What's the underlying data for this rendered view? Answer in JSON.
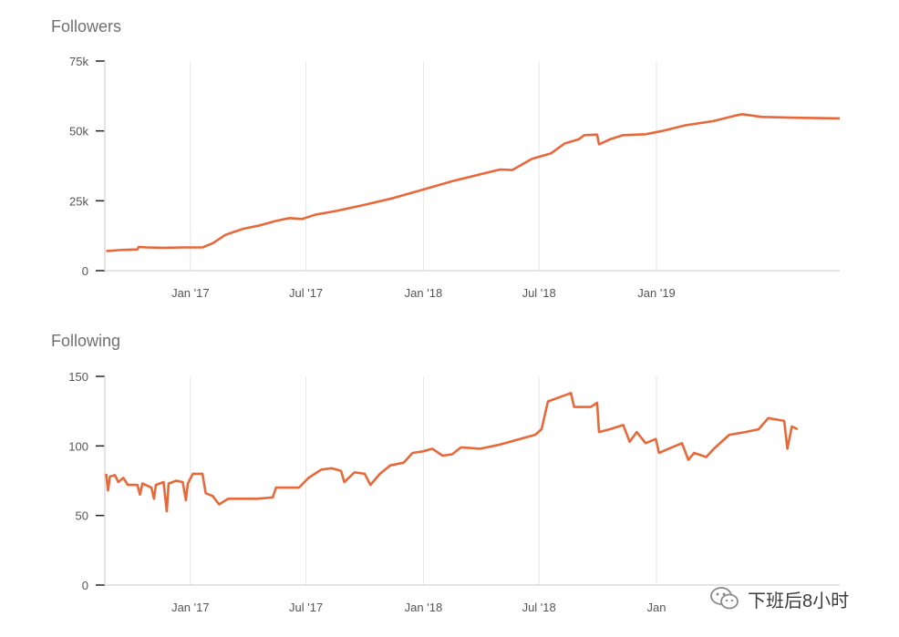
{
  "chart_data": [
    {
      "type": "line",
      "title": "Followers",
      "x_tick_labels": [
        "Jan '17",
        "Jul '17",
        "Jan '18",
        "Jul '18",
        "Jan '19"
      ],
      "y_tick_labels": [
        "0",
        "25k",
        "50k",
        "75k"
      ],
      "ylim": [
        0,
        75000
      ],
      "xlim": [
        "2016-08-20",
        "2019-10-15"
      ],
      "grid": "vertical",
      "series": [
        {
          "color": "#e8683a",
          "points": [
            [
              "2016-08-22",
              7000
            ],
            [
              "2016-09-15",
              7400
            ],
            [
              "2016-10-10",
              7600
            ],
            [
              "2016-10-12",
              8500
            ],
            [
              "2016-10-25",
              8300
            ],
            [
              "2016-11-20",
              8200
            ],
            [
              "2016-12-20",
              8300
            ],
            [
              "2017-01-20",
              8300
            ],
            [
              "2017-02-05",
              9800
            ],
            [
              "2017-02-25",
              12800
            ],
            [
              "2017-03-25",
              15000
            ],
            [
              "2017-04-20",
              16200
            ],
            [
              "2017-05-15",
              17800
            ],
            [
              "2017-06-05",
              18800
            ],
            [
              "2017-06-25",
              18500
            ],
            [
              "2017-07-15",
              20000
            ],
            [
              "2017-08-20",
              21500
            ],
            [
              "2017-09-30",
              23500
            ],
            [
              "2017-11-15",
              26000
            ],
            [
              "2017-12-31",
              29000
            ],
            [
              "2018-02-15",
              32000
            ],
            [
              "2018-03-31",
              34500
            ],
            [
              "2018-05-01",
              36200
            ],
            [
              "2018-05-20",
              36000
            ],
            [
              "2018-06-20",
              40000
            ],
            [
              "2018-07-20",
              42000
            ],
            [
              "2018-08-10",
              45500
            ],
            [
              "2018-09-01",
              47000
            ],
            [
              "2018-09-10",
              48500
            ],
            [
              "2018-09-30",
              48700
            ],
            [
              "2018-10-03",
              45200
            ],
            [
              "2018-10-20",
              47000
            ],
            [
              "2018-11-10",
              48500
            ],
            [
              "2018-12-15",
              48800
            ],
            [
              "2019-01-10",
              50000
            ],
            [
              "2019-02-15",
              52000
            ],
            [
              "2019-03-31",
              53500
            ],
            [
              "2019-05-05",
              55500
            ],
            [
              "2019-05-15",
              56000
            ],
            [
              "2019-06-15",
              55000
            ],
            [
              "2019-08-15",
              54700
            ],
            [
              "2019-10-15",
              54500
            ]
          ]
        }
      ]
    },
    {
      "type": "line",
      "title": "Following",
      "x_tick_labels": [
        "Jan '17",
        "Jul '17",
        "Jan '18",
        "Jul '18",
        "Jan"
      ],
      "y_tick_labels": [
        "0",
        "50",
        "100",
        "150"
      ],
      "ylim": [
        0,
        150
      ],
      "xlim": [
        "2016-08-20",
        "2019-10-15"
      ],
      "grid": "vertical",
      "series": [
        {
          "color": "#e8683a",
          "points": [
            [
              "2016-08-22",
              80
            ],
            [
              "2016-08-25",
              68
            ],
            [
              "2016-08-28",
              78
            ],
            [
              "2016-09-05",
              79
            ],
            [
              "2016-09-10",
              74
            ],
            [
              "2016-09-18",
              77
            ],
            [
              "2016-09-25",
              72
            ],
            [
              "2016-10-10",
              72
            ],
            [
              "2016-10-14",
              65
            ],
            [
              "2016-10-18",
              73
            ],
            [
              "2016-11-01",
              70
            ],
            [
              "2016-11-05",
              62
            ],
            [
              "2016-11-08",
              72
            ],
            [
              "2016-11-20",
              74
            ],
            [
              "2016-11-25",
              53
            ],
            [
              "2016-11-28",
              73
            ],
            [
              "2016-12-10",
              75
            ],
            [
              "2016-12-20",
              74
            ],
            [
              "2016-12-25",
              61
            ],
            [
              "2016-12-28",
              73
            ],
            [
              "2017-01-05",
              80
            ],
            [
              "2017-01-20",
              80
            ],
            [
              "2017-01-25",
              66
            ],
            [
              "2017-02-05",
              64
            ],
            [
              "2017-02-15",
              58
            ],
            [
              "2017-03-01",
              62
            ],
            [
              "2017-04-15",
              62
            ],
            [
              "2017-05-10",
              63
            ],
            [
              "2017-05-15",
              70
            ],
            [
              "2017-06-10",
              70
            ],
            [
              "2017-06-20",
              70
            ],
            [
              "2017-07-05",
              77
            ],
            [
              "2017-07-25",
              83
            ],
            [
              "2017-08-10",
              84
            ],
            [
              "2017-08-25",
              82
            ],
            [
              "2017-08-30",
              74
            ],
            [
              "2017-09-15",
              81
            ],
            [
              "2017-10-01",
              80
            ],
            [
              "2017-10-10",
              72
            ],
            [
              "2017-10-25",
              80
            ],
            [
              "2017-11-10",
              86
            ],
            [
              "2017-12-01",
              88
            ],
            [
              "2017-12-15",
              95
            ],
            [
              "2017-12-31",
              96
            ],
            [
              "2018-01-15",
              98
            ],
            [
              "2018-01-31",
              93
            ],
            [
              "2018-02-15",
              94
            ],
            [
              "2018-03-01",
              99
            ],
            [
              "2018-03-31",
              98
            ],
            [
              "2018-05-01",
              101
            ],
            [
              "2018-06-25",
              108
            ],
            [
              "2018-07-05",
              112
            ],
            [
              "2018-07-15",
              132
            ],
            [
              "2018-08-20",
              138
            ],
            [
              "2018-08-25",
              128
            ],
            [
              "2018-09-20",
              128
            ],
            [
              "2018-09-30",
              131
            ],
            [
              "2018-10-03",
              110
            ],
            [
              "2018-10-20",
              112
            ],
            [
              "2018-11-10",
              115
            ],
            [
              "2018-11-20",
              103
            ],
            [
              "2018-12-01",
              110
            ],
            [
              "2018-12-15",
              102
            ],
            [
              "2018-12-31",
              105
            ],
            [
              "2019-01-05",
              95
            ],
            [
              "2019-01-20",
              98
            ],
            [
              "2019-02-10",
              102
            ],
            [
              "2019-02-20",
              90
            ],
            [
              "2019-03-01",
              95
            ],
            [
              "2019-03-20",
              92
            ],
            [
              "2019-04-01",
              98
            ],
            [
              "2019-04-25",
              108
            ],
            [
              "2019-05-20",
              110
            ],
            [
              "2019-06-10",
              112
            ],
            [
              "2019-06-25",
              120
            ],
            [
              "2019-07-20",
              118
            ],
            [
              "2019-07-25",
              98
            ],
            [
              "2019-08-01",
              114
            ],
            [
              "2019-08-10",
              112
            ]
          ]
        }
      ]
    }
  ],
  "watermark": {
    "text": "下班后8小时",
    "icon": "wechat-icon"
  }
}
